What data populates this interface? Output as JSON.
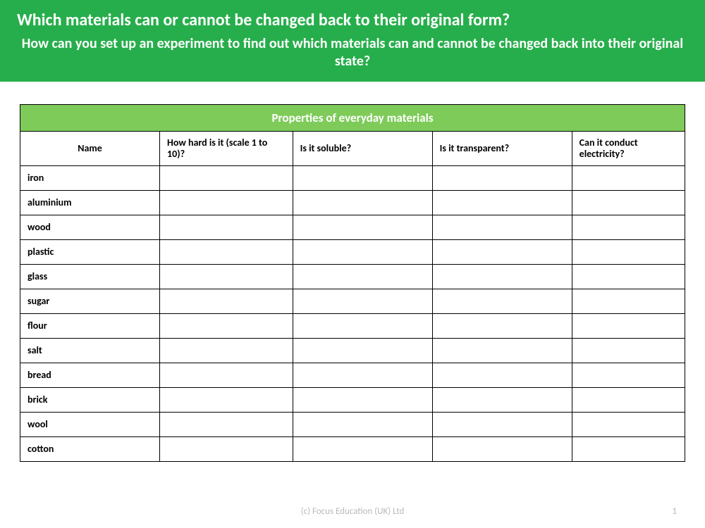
{
  "header": {
    "bg_color": "#27ae4c",
    "title": "Which materials can or cannot be changed back to their original form?",
    "subtitle": "How can you set up an experiment to find out which materials can and cannot be changed back into their original state?"
  },
  "table": {
    "caption_bg_color": "#7ecb5a",
    "caption": "Properties of everyday materials",
    "columns": [
      "Name",
      "How hard is it (scale 1 to 10)?",
      "Is it soluble?",
      "Is it transparent?",
      "Can it conduct electricity?"
    ],
    "rows": [
      {
        "name": "iron",
        "hardness": "",
        "soluble": "",
        "transparent": "",
        "conducts": ""
      },
      {
        "name": "aluminium",
        "hardness": "",
        "soluble": "",
        "transparent": "",
        "conducts": ""
      },
      {
        "name": "wood",
        "hardness": "",
        "soluble": "",
        "transparent": "",
        "conducts": ""
      },
      {
        "name": "plastic",
        "hardness": "",
        "soluble": "",
        "transparent": "",
        "conducts": ""
      },
      {
        "name": "glass",
        "hardness": "",
        "soluble": "",
        "transparent": "",
        "conducts": ""
      },
      {
        "name": "sugar",
        "hardness": "",
        "soluble": "",
        "transparent": "",
        "conducts": ""
      },
      {
        "name": "flour",
        "hardness": "",
        "soluble": "",
        "transparent": "",
        "conducts": ""
      },
      {
        "name": "salt",
        "hardness": "",
        "soluble": "",
        "transparent": "",
        "conducts": ""
      },
      {
        "name": "bread",
        "hardness": "",
        "soluble": "",
        "transparent": "",
        "conducts": ""
      },
      {
        "name": "brick",
        "hardness": "",
        "soluble": "",
        "transparent": "",
        "conducts": ""
      },
      {
        "name": "wool",
        "hardness": "",
        "soluble": "",
        "transparent": "",
        "conducts": ""
      },
      {
        "name": "cotton",
        "hardness": "",
        "soluble": "",
        "transparent": "",
        "conducts": ""
      }
    ]
  },
  "footer": {
    "copyright": "(c) Focus Education (UK) Ltd",
    "page_number": "1"
  }
}
